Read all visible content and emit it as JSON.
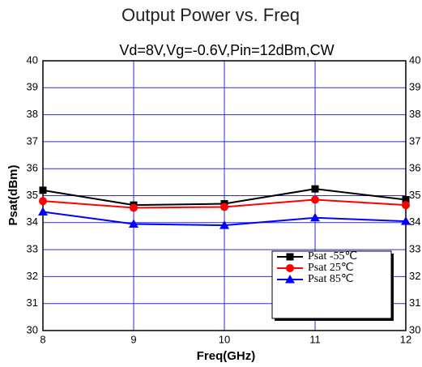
{
  "chart_data": {
    "type": "line",
    "title": "Output Power vs. Freq",
    "subtitle": "Vd=8V,Vg=-0.6V,Pin=12dBm,CW",
    "x_label": "Freq(GHz)",
    "y_label": "Psat(dBm)",
    "x": [
      8,
      9,
      10,
      11,
      12
    ],
    "xlim": [
      8,
      12
    ],
    "xticks": [
      8,
      9,
      10,
      11,
      12
    ],
    "ylim": [
      30,
      40
    ],
    "yticks": [
      30,
      31,
      32,
      33,
      34,
      35,
      36,
      37,
      38,
      39,
      40
    ],
    "grid": true,
    "grid_color": "#2b2bd6",
    "legend": "lower right",
    "series": [
      {
        "name": "Psat -55℃",
        "color": "#000000",
        "marker": "square",
        "values": [
          35.2,
          34.65,
          34.7,
          35.25,
          34.85
        ]
      },
      {
        "name": "Psat 25℃",
        "color": "#ff0000",
        "marker": "circle",
        "values": [
          34.8,
          34.55,
          34.58,
          34.85,
          34.65
        ]
      },
      {
        "name": "Psat 85℃",
        "color": "#0000ff",
        "marker": "triangle",
        "values": [
          34.4,
          33.95,
          33.9,
          34.18,
          34.05
        ]
      }
    ]
  }
}
